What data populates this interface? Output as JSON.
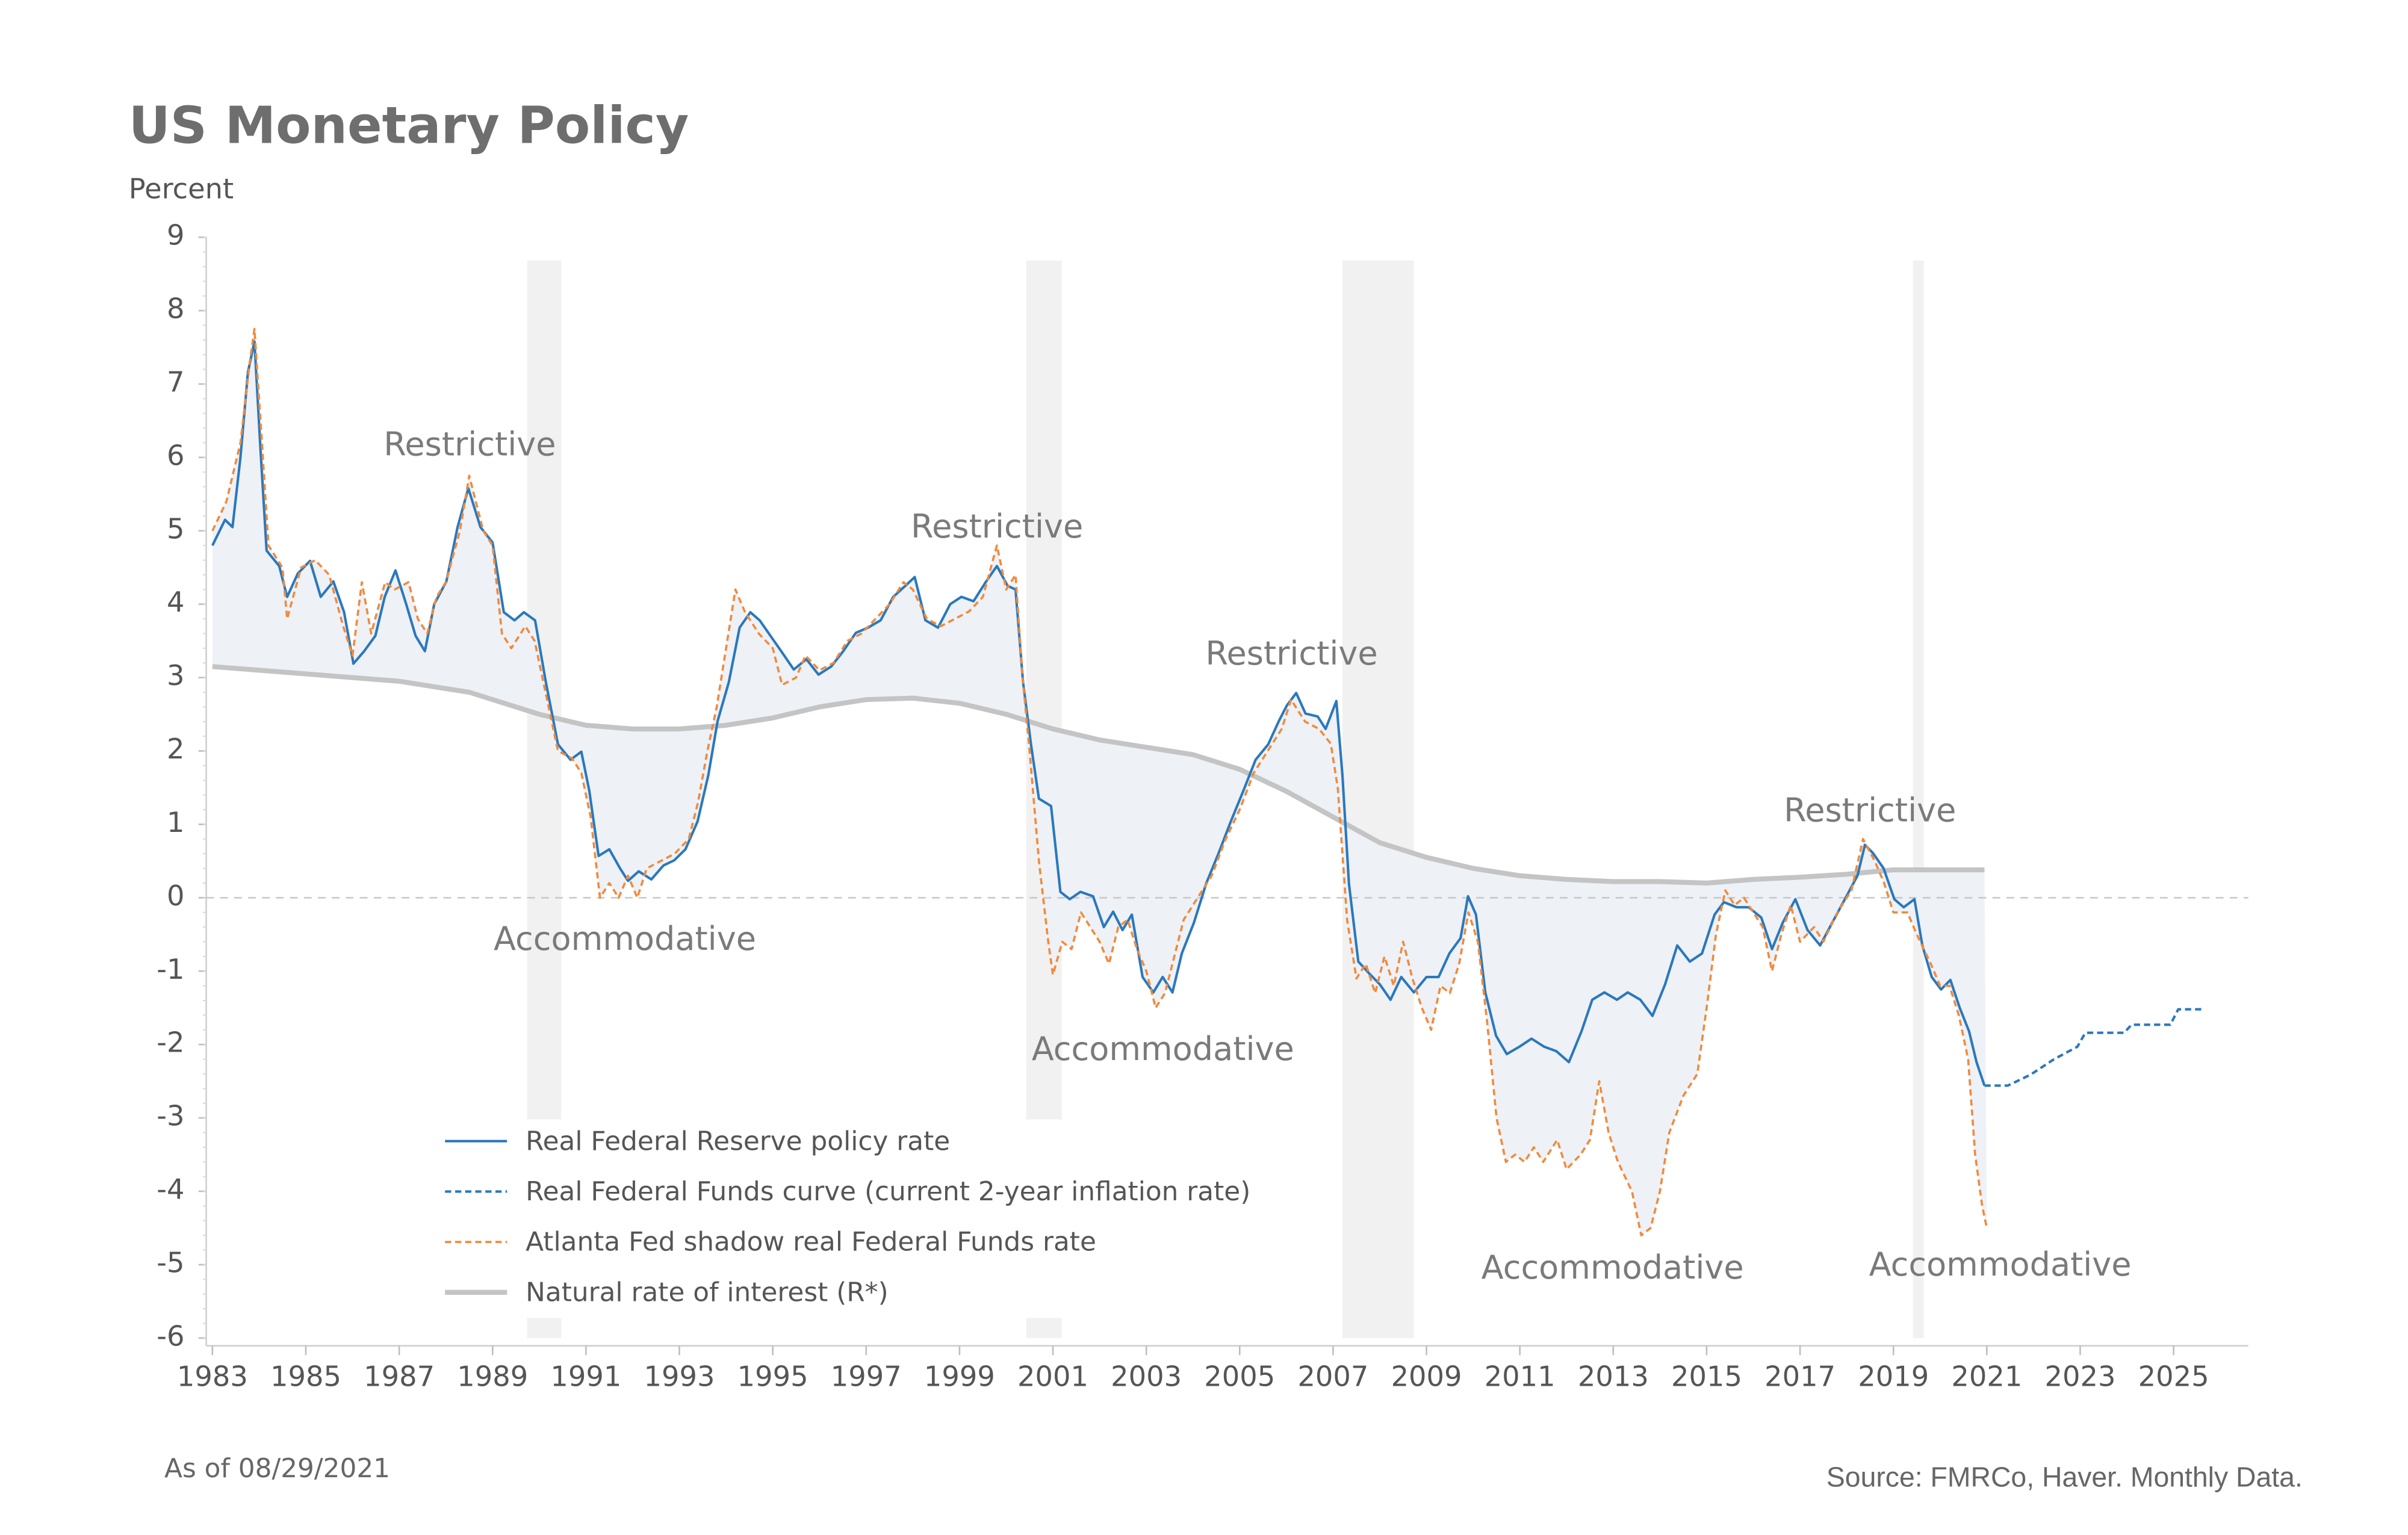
{
  "chart_data": {
    "type": "line",
    "title": "US Monetary Policy",
    "y_label": "Percent",
    "note": "As of 08/29/2021",
    "source": "Source: FMRCo, Haver. Monthly Data.",
    "xlim": [
      1983,
      2026.6
    ],
    "ylim": [
      -6,
      9
    ],
    "xticks": [
      1983,
      1985,
      1987,
      1989,
      1991,
      1993,
      1995,
      1997,
      1999,
      2001,
      2003,
      2005,
      2007,
      2009,
      2011,
      2013,
      2015,
      2017,
      2019,
      2021,
      2023,
      2025
    ],
    "yticks": [
      -6,
      -5,
      -4,
      -3,
      -2,
      -1,
      0,
      1,
      2,
      3,
      4,
      5,
      6,
      7,
      8,
      9
    ],
    "zero_line": true,
    "fill_color": "#eef1f6",
    "shade_color": "#f1f1f1",
    "shaded_periods": [
      [
        1989.74,
        1990.47
      ],
      [
        2000.43,
        2001.19
      ],
      [
        2007.2,
        2008.73
      ],
      [
        2019.42,
        2019.65
      ]
    ],
    "annotations": [
      "Restrictive",
      "Restrictive",
      "Restrictive",
      "Restrictive",
      "Accommodative",
      "Accommodative",
      "Accommodative",
      "Accommodative"
    ],
    "series": [
      {
        "name": "Real Federal Reserve policy rate",
        "color": "#2a78bd",
        "style": "solid",
        "width": 1.6,
        "filled": true,
        "x": [
          1983.0,
          1983.27,
          1983.43,
          1983.6,
          1983.76,
          1983.9,
          1984.03,
          1984.16,
          1984.43,
          1984.6,
          1984.83,
          1985.09,
          1985.32,
          1985.59,
          1985.82,
          1986.02,
          1986.25,
          1986.49,
          1986.69,
          1986.92,
          1987.15,
          1987.35,
          1987.55,
          1987.75,
          1988.01,
          1988.25,
          1988.48,
          1988.74,
          1989.0,
          1989.24,
          1989.47,
          1989.67,
          1989.91,
          1990.14,
          1990.4,
          1990.67,
          1990.9,
          1991.07,
          1991.27,
          1991.5,
          1991.73,
          1991.9,
          1992.13,
          1992.4,
          1992.66,
          1992.89,
          1993.13,
          1993.39,
          1993.62,
          1993.82,
          1994.06,
          1994.29,
          1994.52,
          1994.72,
          1994.95,
          1995.18,
          1995.45,
          1995.72,
          1995.98,
          1996.25,
          1996.51,
          1996.78,
          1997.04,
          1997.31,
          1997.58,
          1997.84,
          1998.04,
          1998.27,
          1998.54,
          1998.8,
          1999.04,
          1999.3,
          1999.57,
          1999.8,
          2000.03,
          2000.2,
          2000.36,
          2000.53,
          2000.7,
          2000.96,
          2001.16,
          2001.36,
          2001.59,
          2001.86,
          2002.09,
          2002.29,
          2002.49,
          2002.69,
          2002.92,
          2003.15,
          2003.35,
          2003.56,
          2003.76,
          2004.02,
          2004.28,
          2004.55,
          2004.81,
          2005.08,
          2005.34,
          2005.61,
          2005.84,
          2006.01,
          2006.21,
          2006.41,
          2006.67,
          2006.84,
          2007.07,
          2007.2,
          2007.34,
          2007.54,
          2007.77,
          2008.0,
          2008.23,
          2008.46,
          2008.73,
          2009.0,
          2009.26,
          2009.49,
          2009.73,
          2009.89,
          2010.06,
          2010.26,
          2010.49,
          2010.72,
          2010.99,
          2011.25,
          2011.52,
          2011.78,
          2012.05,
          2012.32,
          2012.55,
          2012.81,
          2013.08,
          2013.31,
          2013.58,
          2013.84,
          2014.11,
          2014.37,
          2014.64,
          2014.9,
          2015.17,
          2015.37,
          2015.64,
          2015.9,
          2016.17,
          2016.4,
          2016.63,
          2016.9,
          2017.16,
          2017.43,
          2017.69,
          2017.96,
          2018.23,
          2018.39,
          2018.56,
          2018.79,
          2019.02,
          2019.22,
          2019.45,
          2019.62,
          2019.82,
          2020.02,
          2020.22,
          2020.42,
          2020.62,
          2020.78,
          2020.95
        ],
        "values": [
          4.8,
          5.15,
          5.05,
          6.0,
          7.16,
          7.58,
          6.1,
          4.73,
          4.52,
          4.1,
          4.42,
          4.59,
          4.1,
          4.31,
          3.89,
          3.19,
          3.36,
          3.57,
          4.1,
          4.46,
          4.0,
          3.57,
          3.36,
          4.0,
          4.31,
          5.05,
          5.58,
          5.05,
          4.84,
          3.89,
          3.78,
          3.89,
          3.78,
          2.94,
          2.09,
          1.88,
          1.99,
          1.46,
          0.57,
          0.66,
          0.4,
          0.23,
          0.36,
          0.25,
          0.44,
          0.51,
          0.66,
          1.04,
          1.67,
          2.41,
          2.94,
          3.68,
          3.89,
          3.78,
          3.57,
          3.36,
          3.11,
          3.25,
          3.04,
          3.15,
          3.36,
          3.61,
          3.68,
          3.78,
          4.1,
          4.25,
          4.37,
          3.78,
          3.68,
          4.0,
          4.1,
          4.04,
          4.31,
          4.52,
          4.25,
          4.2,
          2.94,
          2.09,
          1.35,
          1.25,
          0.08,
          -0.02,
          0.08,
          0.02,
          -0.4,
          -0.19,
          -0.44,
          -0.23,
          -1.08,
          -1.29,
          -1.08,
          -1.29,
          -0.76,
          -0.34,
          0.19,
          0.61,
          1.04,
          1.46,
          1.88,
          2.09,
          2.41,
          2.62,
          2.79,
          2.51,
          2.47,
          2.3,
          2.68,
          1.67,
          0.19,
          -0.87,
          -1.03,
          -1.18,
          -1.39,
          -1.08,
          -1.29,
          -1.08,
          -1.08,
          -0.76,
          -0.55,
          0.02,
          -0.23,
          -1.29,
          -1.88,
          -2.13,
          -2.03,
          -1.92,
          -2.03,
          -2.09,
          -2.24,
          -1.82,
          -1.39,
          -1.29,
          -1.39,
          -1.29,
          -1.39,
          -1.61,
          -1.18,
          -0.65,
          -0.87,
          -0.76,
          -0.23,
          -0.06,
          -0.13,
          -0.13,
          -0.27,
          -0.7,
          -0.34,
          -0.02,
          -0.44,
          -0.65,
          -0.34,
          -0.02,
          0.3,
          0.72,
          0.61,
          0.4,
          -0.02,
          -0.13,
          -0.02,
          -0.65,
          -1.08,
          -1.25,
          -1.12,
          -1.5,
          -1.82,
          -2.24,
          -2.56
        ]
      },
      {
        "name": "Real Federal Funds curve (current 2-year inflation rate)",
        "color": "#2a78bd",
        "style": "dashed",
        "width": 1.6,
        "filled": false,
        "x": [
          2020.95,
          2021.45,
          2021.94,
          2022.44,
          2022.94,
          2023.11,
          2023.94,
          2024.1,
          2024.93,
          2025.1,
          2025.66
        ],
        "values": [
          -2.56,
          -2.56,
          -2.41,
          -2.2,
          -2.03,
          -1.84,
          -1.84,
          -1.73,
          -1.73,
          -1.52,
          -1.52
        ]
      },
      {
        "name": "Atlanta Fed shadow real Federal Funds rate",
        "color": "#f08a3c",
        "style": "dashed",
        "width": 1.4,
        "filled": true,
        "x": [
          1983.0,
          1983.3,
          1983.6,
          1983.8,
          1983.9,
          1984.05,
          1984.2,
          1984.5,
          1984.6,
          1984.9,
          1985.2,
          1985.5,
          1985.8,
          1986.0,
          1986.2,
          1986.4,
          1986.7,
          1986.9,
          1987.2,
          1987.4,
          1987.6,
          1987.8,
          1988.0,
          1988.3,
          1988.5,
          1988.8,
          1989.0,
          1989.2,
          1989.4,
          1989.7,
          1989.9,
          1990.1,
          1990.4,
          1990.7,
          1990.9,
          1991.1,
          1991.3,
          1991.5,
          1991.7,
          1991.9,
          1992.1,
          1992.3,
          1992.6,
          1992.9,
          1993.2,
          1993.4,
          1993.6,
          1993.8,
          1994.0,
          1994.2,
          1994.4,
          1994.7,
          1995.0,
          1995.2,
          1995.5,
          1995.7,
          1996.0,
          1996.3,
          1996.6,
          1996.9,
          1997.2,
          1997.5,
          1997.8,
          1998.0,
          1998.3,
          1998.6,
          1998.9,
          1999.2,
          1999.5,
          1999.8,
          2000.0,
          2000.2,
          2000.35,
          2000.5,
          2000.7,
          2000.9,
          2001.0,
          2001.2,
          2001.4,
          2001.6,
          2001.8,
          2002.0,
          2002.2,
          2002.4,
          2002.6,
          2002.8,
          2003.0,
          2003.2,
          2003.4,
          2003.6,
          2003.8,
          2004.1,
          2004.4,
          2004.7,
          2005.0,
          2005.3,
          2005.6,
          2005.9,
          2006.1,
          2006.4,
          2006.7,
          2006.95,
          2007.1,
          2007.3,
          2007.5,
          2007.7,
          2007.9,
          2008.1,
          2008.3,
          2008.5,
          2008.7,
          2008.9,
          2009.1,
          2009.3,
          2009.5,
          2009.7,
          2009.9,
          2010.1,
          2010.3,
          2010.5,
          2010.7,
          2010.9,
          2011.1,
          2011.3,
          2011.5,
          2011.8,
          2012.0,
          2012.3,
          2012.5,
          2012.7,
          2012.9,
          2013.1,
          2013.4,
          2013.6,
          2013.8,
          2014.0,
          2014.2,
          2014.5,
          2014.8,
          2015.0,
          2015.2,
          2015.4,
          2015.6,
          2015.8,
          2016.0,
          2016.2,
          2016.4,
          2016.6,
          2016.8,
          2017.0,
          2017.3,
          2017.5,
          2017.8,
          2018.1,
          2018.35,
          2018.6,
          2018.8,
          2019.0,
          2019.3,
          2019.5,
          2019.8,
          2020.0,
          2020.2,
          2020.4,
          2020.6,
          2020.75,
          2020.9,
          2021.0
        ],
        "values": [
          5.0,
          5.4,
          6.2,
          7.3,
          7.75,
          6.3,
          4.8,
          4.5,
          3.8,
          4.5,
          4.6,
          4.4,
          3.7,
          3.3,
          4.3,
          3.6,
          4.3,
          4.2,
          4.3,
          3.8,
          3.6,
          4.1,
          4.3,
          5.0,
          5.75,
          5.0,
          4.8,
          3.6,
          3.4,
          3.7,
          3.5,
          2.9,
          2.0,
          1.9,
          1.7,
          1.1,
          0.0,
          0.2,
          0.0,
          0.3,
          0.0,
          0.4,
          0.5,
          0.6,
          0.8,
          1.3,
          2.0,
          2.6,
          3.4,
          4.2,
          3.9,
          3.6,
          3.4,
          2.9,
          3.0,
          3.3,
          3.1,
          3.2,
          3.5,
          3.6,
          3.8,
          4.0,
          4.3,
          4.2,
          3.8,
          3.7,
          3.8,
          3.9,
          4.1,
          4.8,
          4.2,
          4.4,
          3.0,
          2.0,
          0.5,
          -0.6,
          -1.05,
          -0.6,
          -0.7,
          -0.2,
          -0.4,
          -0.6,
          -0.9,
          -0.4,
          -0.3,
          -0.7,
          -1.0,
          -1.5,
          -1.3,
          -0.8,
          -0.3,
          0.0,
          0.3,
          0.8,
          1.2,
          1.7,
          2.0,
          2.3,
          2.7,
          2.4,
          2.3,
          2.1,
          1.5,
          -0.3,
          -1.1,
          -0.9,
          -1.3,
          -0.8,
          -1.2,
          -0.6,
          -1.1,
          -1.5,
          -1.8,
          -1.2,
          -1.3,
          -0.9,
          -0.2,
          -0.6,
          -1.7,
          -3.0,
          -3.6,
          -3.5,
          -3.6,
          -3.4,
          -3.6,
          -3.3,
          -3.7,
          -3.5,
          -3.3,
          -2.5,
          -3.2,
          -3.6,
          -4.0,
          -4.6,
          -4.5,
          -4.0,
          -3.2,
          -2.7,
          -2.4,
          -1.5,
          -0.5,
          0.1,
          -0.1,
          0.0,
          -0.2,
          -0.4,
          -1.0,
          -0.5,
          -0.1,
          -0.6,
          -0.4,
          -0.6,
          -0.2,
          0.1,
          0.8,
          0.5,
          0.2,
          -0.2,
          -0.2,
          -0.5,
          -0.9,
          -1.2,
          -1.2,
          -1.6,
          -2.2,
          -3.5,
          -4.2,
          -4.5
        ]
      },
      {
        "name": "Natural rate of interest (R*)",
        "color": "#c4c4c4",
        "style": "solid",
        "width": 3.2,
        "filled": false,
        "x": [
          1983,
          1985,
          1987,
          1988.5,
          1990,
          1991,
          1992,
          1993,
          1994,
          1995,
          1996,
          1997,
          1998,
          1999,
          2000,
          2001,
          2002,
          2003,
          2004,
          2005,
          2006,
          2007,
          2008,
          2009,
          2010,
          2011,
          2012,
          2013,
          2014,
          2015,
          2016,
          2017,
          2018,
          2019,
          2020,
          2020.95
        ],
        "values": [
          3.15,
          3.05,
          2.95,
          2.8,
          2.5,
          2.35,
          2.3,
          2.3,
          2.35,
          2.45,
          2.6,
          2.7,
          2.72,
          2.65,
          2.5,
          2.3,
          2.15,
          2.05,
          1.95,
          1.75,
          1.45,
          1.1,
          0.75,
          0.55,
          0.4,
          0.3,
          0.25,
          0.22,
          0.22,
          0.2,
          0.25,
          0.28,
          0.32,
          0.38,
          0.38,
          0.38
        ]
      }
    ]
  }
}
